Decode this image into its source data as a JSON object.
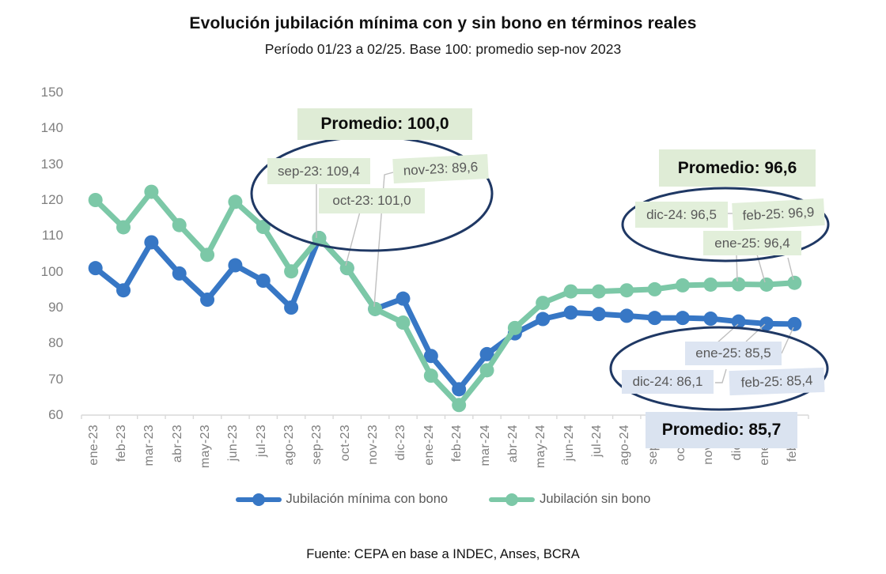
{
  "header": {
    "title": "Evolución jubilación mínima con y sin bono en términos reales",
    "subtitle": "Período 01/23 a 02/25. Base 100: promedio sep-nov 2023"
  },
  "footer": {
    "source": "Fuente: CEPA en base a INDEC, Anses, BCRA"
  },
  "colors": {
    "con_bono_blue": "#3777C5",
    "sin_bono_green": "#7CC8A7",
    "ellipse_navy": "#1F3864",
    "green_label_bg": "#E2EFDA",
    "blue_label_bg": "#DDE5F2",
    "axis_gray": "#7F7F7F",
    "leader_gray": "#BFBFBF"
  },
  "legend": {
    "items": [
      {
        "label": "Jubilación mínima con bono",
        "color": "#3777C5"
      },
      {
        "label": "Jubilación sin bono",
        "color": "#7CC8A7"
      }
    ]
  },
  "annotations": {
    "base_period": {
      "title": "Promedio: 100,0",
      "sep": "sep-23: 109,4",
      "oct": "oct-23: 101,0",
      "nov": "nov-23: 89,6"
    },
    "green_recent": {
      "title": "Promedio: 96,6",
      "dic": "dic-24: 96,5",
      "ene": "ene-25: 96,4",
      "feb": "feb-25: 96,9"
    },
    "blue_recent": {
      "title": "Promedio: 85,7",
      "dic": "dic-24: 86,1",
      "ene": "ene-25: 85,5",
      "feb": "feb-25: 85,4"
    }
  },
  "chart_data": {
    "type": "line",
    "title": "Evolución jubilación mínima con y sin bono en términos reales",
    "subtitle": "Período 01/23 a 02/25. Base 100: promedio sep-nov 2023",
    "xlabel": "",
    "ylabel": "",
    "ylim": [
      60,
      150
    ],
    "ytick_step": 10,
    "grid": false,
    "legend_position": "bottom",
    "categories": [
      "ene-23",
      "feb-23",
      "mar-23",
      "abr-23",
      "may-23",
      "jun-23",
      "jul-23",
      "ago-23",
      "sep-23",
      "oct-23",
      "nov-23",
      "dic-23",
      "ene-24",
      "feb-24",
      "mar-24",
      "abr-24",
      "may-24",
      "jun-24",
      "jul-24",
      "ago-24",
      "sep-24",
      "oct-24",
      "nov-24",
      "dic-24",
      "ene-25",
      "feb-25"
    ],
    "series": [
      {
        "name": "Jubilación mínima con bono",
        "color": "#3777C5",
        "values": [
          101.0,
          94.8,
          108.2,
          99.5,
          92.2,
          101.8,
          97.5,
          90.0,
          109.4,
          101.0,
          89.6,
          92.5,
          76.5,
          67.2,
          77.0,
          82.8,
          86.8,
          88.6,
          88.2,
          87.7,
          87.1,
          87.1,
          86.9,
          86.1,
          85.5,
          85.4
        ]
      },
      {
        "name": "Jubilación sin bono",
        "color": "#7CC8A7",
        "values": [
          120.0,
          112.4,
          122.3,
          113.0,
          104.7,
          119.5,
          112.5,
          100.1,
          109.4,
          101.0,
          89.6,
          85.8,
          71.0,
          62.8,
          72.5,
          84.3,
          91.3,
          94.5,
          94.5,
          94.8,
          95.1,
          96.2,
          96.4,
          96.5,
          96.4,
          96.9
        ]
      }
    ],
    "averages": {
      "base_period_sep23_nov23": 100.0,
      "sin_bono_dic24_feb25": 96.6,
      "con_bono_dic24_feb25": 85.7
    }
  }
}
